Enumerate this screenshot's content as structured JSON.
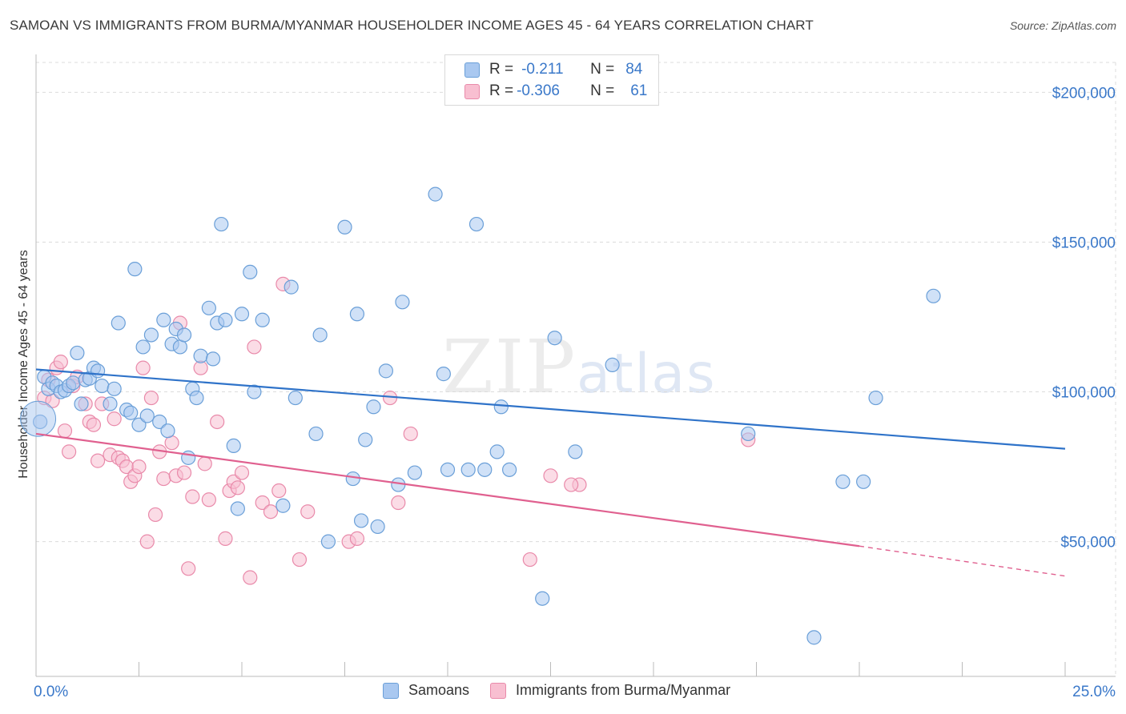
{
  "title": "SAMOAN VS IMMIGRANTS FROM BURMA/MYANMAR HOUSEHOLDER INCOME AGES 45 - 64 YEARS CORRELATION CHART",
  "source": "Source: ZipAtlas.com",
  "watermark": {
    "zip": "ZIP",
    "atlas": "atlas"
  },
  "legend": {
    "rows": [
      {
        "r_label": "R =",
        "r_value": "-0.211",
        "n_label": "N =",
        "n_value": "84"
      },
      {
        "r_label": "R =",
        "r_value": "-0.306",
        "n_label": "N =",
        "n_value": "61"
      }
    ]
  },
  "bottom_legend": [
    "Samoans",
    "Immigrants from Burma/Myanmar"
  ],
  "colors": {
    "blue_fill": "#a9c8f0",
    "blue_stroke": "#6a9fd8",
    "blue_line": "#2f73c9",
    "pink_fill": "#f8bfd1",
    "pink_stroke": "#e98aaa",
    "pink_line": "#e0608f",
    "tick_label": "#3a78c9",
    "grid": "#dcdcdc"
  },
  "chart_data": {
    "type": "scatter",
    "title": "SAMOAN VS IMMIGRANTS FROM BURMA/MYANMAR HOUSEHOLDER INCOME AGES 45 - 64 YEARS CORRELATION CHART",
    "xlabel": "",
    "ylabel": "Householder Income Ages 45 - 64 years",
    "xlim": [
      0,
      25
    ],
    "ylim": [
      5000,
      210000
    ],
    "x_tick_labels": [
      "0.0%",
      "25.0%"
    ],
    "y_ticks": [
      50000,
      100000,
      150000,
      200000
    ],
    "y_tick_labels": [
      "$50,000",
      "$100,000",
      "$150,000",
      "$200,000"
    ],
    "grid": true,
    "series": [
      {
        "name": "Samoans",
        "r": -0.211,
        "n": 84,
        "trend": {
          "x0": 0,
          "y0": 107500,
          "x1": 25,
          "y1": 81000
        },
        "points": [
          [
            0.1,
            90000
          ],
          [
            0.2,
            105000
          ],
          [
            0.3,
            101000
          ],
          [
            0.4,
            103000
          ],
          [
            0.5,
            102000
          ],
          [
            0.6,
            100000
          ],
          [
            0.7,
            100500
          ],
          [
            0.8,
            102000
          ],
          [
            0.9,
            103000
          ],
          [
            1.0,
            113000
          ],
          [
            1.1,
            96000
          ],
          [
            1.2,
            104000
          ],
          [
            1.3,
            104500
          ],
          [
            1.4,
            108000
          ],
          [
            1.5,
            107000
          ],
          [
            1.6,
            102000
          ],
          [
            1.8,
            96000
          ],
          [
            1.9,
            101000
          ],
          [
            2.0,
            123000
          ],
          [
            2.2,
            94000
          ],
          [
            2.3,
            93000
          ],
          [
            2.4,
            141000
          ],
          [
            2.5,
            89000
          ],
          [
            2.6,
            115000
          ],
          [
            2.7,
            92000
          ],
          [
            2.8,
            119000
          ],
          [
            3.0,
            90000
          ],
          [
            3.1,
            124000
          ],
          [
            3.2,
            87000
          ],
          [
            3.3,
            116000
          ],
          [
            3.4,
            121000
          ],
          [
            3.5,
            115000
          ],
          [
            3.6,
            119000
          ],
          [
            3.7,
            78000
          ],
          [
            3.8,
            101000
          ],
          [
            3.9,
            98000
          ],
          [
            4.0,
            112000
          ],
          [
            4.2,
            128000
          ],
          [
            4.3,
            111000
          ],
          [
            4.4,
            123000
          ],
          [
            4.5,
            156000
          ],
          [
            4.6,
            124000
          ],
          [
            4.8,
            82000
          ],
          [
            4.9,
            61000
          ],
          [
            5.0,
            126000
          ],
          [
            5.2,
            140000
          ],
          [
            5.3,
            100000
          ],
          [
            5.5,
            124000
          ],
          [
            6.0,
            62000
          ],
          [
            6.2,
            135000
          ],
          [
            6.3,
            98000
          ],
          [
            6.8,
            86000
          ],
          [
            6.9,
            119000
          ],
          [
            7.1,
            50000
          ],
          [
            7.5,
            155000
          ],
          [
            7.7,
            71000
          ],
          [
            7.8,
            126000
          ],
          [
            7.9,
            57000
          ],
          [
            8.0,
            84000
          ],
          [
            8.2,
            95000
          ],
          [
            8.3,
            55000
          ],
          [
            8.5,
            107000
          ],
          [
            8.8,
            69000
          ],
          [
            8.9,
            130000
          ],
          [
            9.2,
            73000
          ],
          [
            9.7,
            166000
          ],
          [
            9.9,
            106000
          ],
          [
            10.0,
            74000
          ],
          [
            10.5,
            74000
          ],
          [
            10.7,
            156000
          ],
          [
            10.9,
            74000
          ],
          [
            11.2,
            80000
          ],
          [
            11.3,
            95000
          ],
          [
            11.5,
            74000
          ],
          [
            12.3,
            31000
          ],
          [
            12.6,
            118000
          ],
          [
            13.1,
            80000
          ],
          [
            14.0,
            109000
          ],
          [
            17.3,
            86000
          ],
          [
            18.9,
            18000
          ],
          [
            19.6,
            70000
          ],
          [
            20.1,
            70000
          ],
          [
            20.4,
            98000
          ],
          [
            21.8,
            132000
          ]
        ]
      },
      {
        "name": "Immigrants from Burma/Myanmar",
        "r": -0.306,
        "n": 61,
        "trend": {
          "x0": 0,
          "y0": 86000,
          "x1": 20,
          "y1": 48500,
          "dashed_to_x": 25,
          "dashed_to_y": 38500
        },
        "points": [
          [
            0.2,
            98000
          ],
          [
            0.3,
            104000
          ],
          [
            0.4,
            97000
          ],
          [
            0.5,
            108000
          ],
          [
            0.6,
            110000
          ],
          [
            0.7,
            87000
          ],
          [
            0.8,
            80000
          ],
          [
            0.9,
            102000
          ],
          [
            1.0,
            105000
          ],
          [
            1.2,
            96000
          ],
          [
            1.3,
            90000
          ],
          [
            1.4,
            89000
          ],
          [
            1.5,
            77000
          ],
          [
            1.6,
            96000
          ],
          [
            1.8,
            79000
          ],
          [
            1.9,
            91000
          ],
          [
            2.0,
            78000
          ],
          [
            2.1,
            77000
          ],
          [
            2.2,
            75000
          ],
          [
            2.3,
            70000
          ],
          [
            2.4,
            72000
          ],
          [
            2.5,
            75000
          ],
          [
            2.6,
            108000
          ],
          [
            2.7,
            50000
          ],
          [
            2.8,
            98000
          ],
          [
            2.9,
            59000
          ],
          [
            3.0,
            80000
          ],
          [
            3.1,
            71000
          ],
          [
            3.3,
            83000
          ],
          [
            3.4,
            72000
          ],
          [
            3.5,
            123000
          ],
          [
            3.6,
            73000
          ],
          [
            3.7,
            41000
          ],
          [
            3.8,
            65000
          ],
          [
            4.0,
            108000
          ],
          [
            4.1,
            76000
          ],
          [
            4.2,
            64000
          ],
          [
            4.4,
            90000
          ],
          [
            4.6,
            51000
          ],
          [
            4.7,
            67000
          ],
          [
            4.8,
            70000
          ],
          [
            4.9,
            68000
          ],
          [
            5.0,
            73000
          ],
          [
            5.2,
            38000
          ],
          [
            5.3,
            115000
          ],
          [
            5.5,
            63000
          ],
          [
            5.7,
            60000
          ],
          [
            5.9,
            67000
          ],
          [
            6.0,
            136000
          ],
          [
            6.4,
            44000
          ],
          [
            6.6,
            60000
          ],
          [
            7.6,
            50000
          ],
          [
            7.8,
            51000
          ],
          [
            8.6,
            98000
          ],
          [
            8.8,
            63000
          ],
          [
            9.1,
            86000
          ],
          [
            12.0,
            44000
          ],
          [
            12.5,
            72000
          ],
          [
            13.2,
            69000
          ],
          [
            17.3,
            84000
          ],
          [
            13.0,
            69000
          ]
        ]
      }
    ]
  }
}
